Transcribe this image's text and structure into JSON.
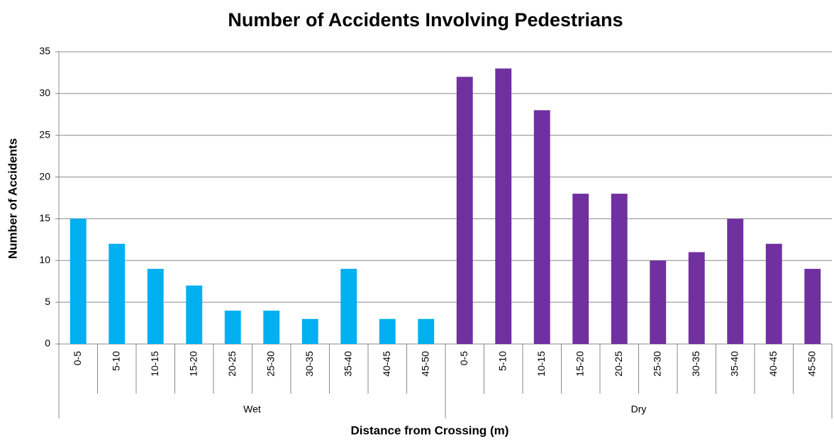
{
  "chart_data": {
    "type": "bar",
    "title": "Number of Accidents Involving Pedestrians",
    "x_label": "Distance from Crossing (m)",
    "y_label": "Number of Accidents",
    "categories": [
      "0-5",
      "5-10",
      "10-15",
      "15-20",
      "20-25",
      "25-30",
      "30-35",
      "35-40",
      "40-45",
      "45-50"
    ],
    "series": [
      {
        "name": "Wet",
        "color": "#00b0f0",
        "values": [
          15,
          12,
          9,
          7,
          4,
          4,
          3,
          9,
          3,
          3
        ]
      },
      {
        "name": "Dry",
        "color": "#7030a0",
        "values": [
          32,
          33,
          28,
          18,
          18,
          10,
          11,
          15,
          12,
          9
        ]
      }
    ],
    "ylim": [
      0,
      35
    ],
    "yticks": [
      0,
      5,
      10,
      15,
      20,
      25,
      30,
      35
    ],
    "grid": true
  }
}
